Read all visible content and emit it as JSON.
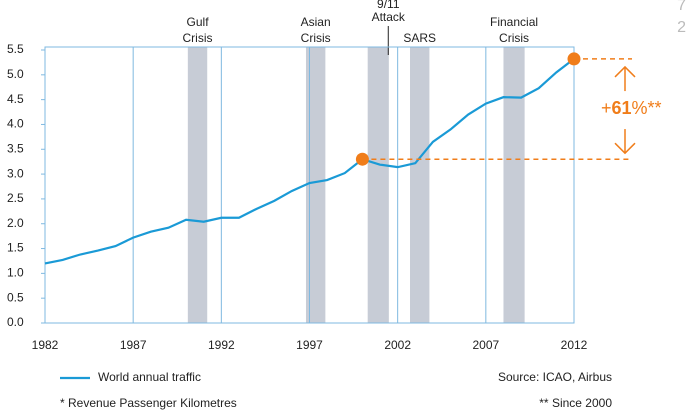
{
  "chart_data": {
    "type": "line",
    "x": [
      1982,
      1983,
      1984,
      1985,
      1986,
      1987,
      1988,
      1989,
      1990,
      1991,
      1992,
      1993,
      1994,
      1995,
      1996,
      1997,
      1998,
      1999,
      2000,
      2001,
      2002,
      2003,
      2004,
      2005,
      2006,
      2007,
      2008,
      2009,
      2010,
      2011,
      2012
    ],
    "series": [
      {
        "name": "World annual traffic",
        "color": "#1a9ad6",
        "values": [
          1.2,
          1.27,
          1.38,
          1.46,
          1.55,
          1.72,
          1.84,
          1.92,
          2.08,
          2.04,
          2.12,
          2.12,
          2.3,
          2.46,
          2.66,
          2.82,
          2.88,
          3.02,
          3.3,
          3.19,
          3.14,
          3.22,
          3.65,
          3.9,
          4.2,
          4.42,
          4.55,
          4.54,
          4.73,
          5.05,
          5.32
        ]
      }
    ],
    "xlim": [
      1982,
      2012
    ],
    "xticks": [
      1982,
      1987,
      1992,
      1997,
      2002,
      2007,
      2012
    ],
    "ylim": [
      0,
      5.5
    ],
    "yticks": [
      {
        "value": 0,
        "label": "0.0"
      },
      0.5,
      {
        "value": 1,
        "label": "1.0"
      },
      1.5,
      {
        "value": 2,
        "label": "2.0"
      },
      2.5,
      {
        "value": 3,
        "label": "3.0"
      },
      3.5,
      {
        "value": 4,
        "label": "4.0"
      },
      4.5,
      {
        "value": 5,
        "label": "5.0"
      },
      5.5
    ],
    "grid": true,
    "events": [
      {
        "lines": [
          "Gulf",
          "Crisis"
        ],
        "x0": 1990.1,
        "x1": 1991.2
      },
      {
        "lines": [
          "Asian",
          "Crisis"
        ],
        "x0": 1996.8,
        "x1": 1997.9
      },
      {
        "lines": [
          "9/11",
          "Attack"
        ],
        "x0": 2000.3,
        "x1": 2001.5
      },
      {
        "lines": [
          "SARS"
        ],
        "x0": 2002.7,
        "x1": 2003.8
      },
      {
        "lines": [
          "Financial",
          "Crisis"
        ],
        "x0": 2008.0,
        "x1": 2009.2
      }
    ],
    "event_color": "#c7ccd6",
    "highlight_x": [
      2000,
      2012
    ],
    "highlight_color": "#f07d1a",
    "annotation": {
      "prefix": "+",
      "value": 61,
      "suffix": "%**"
    },
    "source": "Source: ICAO, Airbus",
    "footnotes": [
      "* Revenue Passenger Kilometres",
      "** Since 2000"
    ],
    "page_marker": [
      "7",
      "2"
    ]
  }
}
